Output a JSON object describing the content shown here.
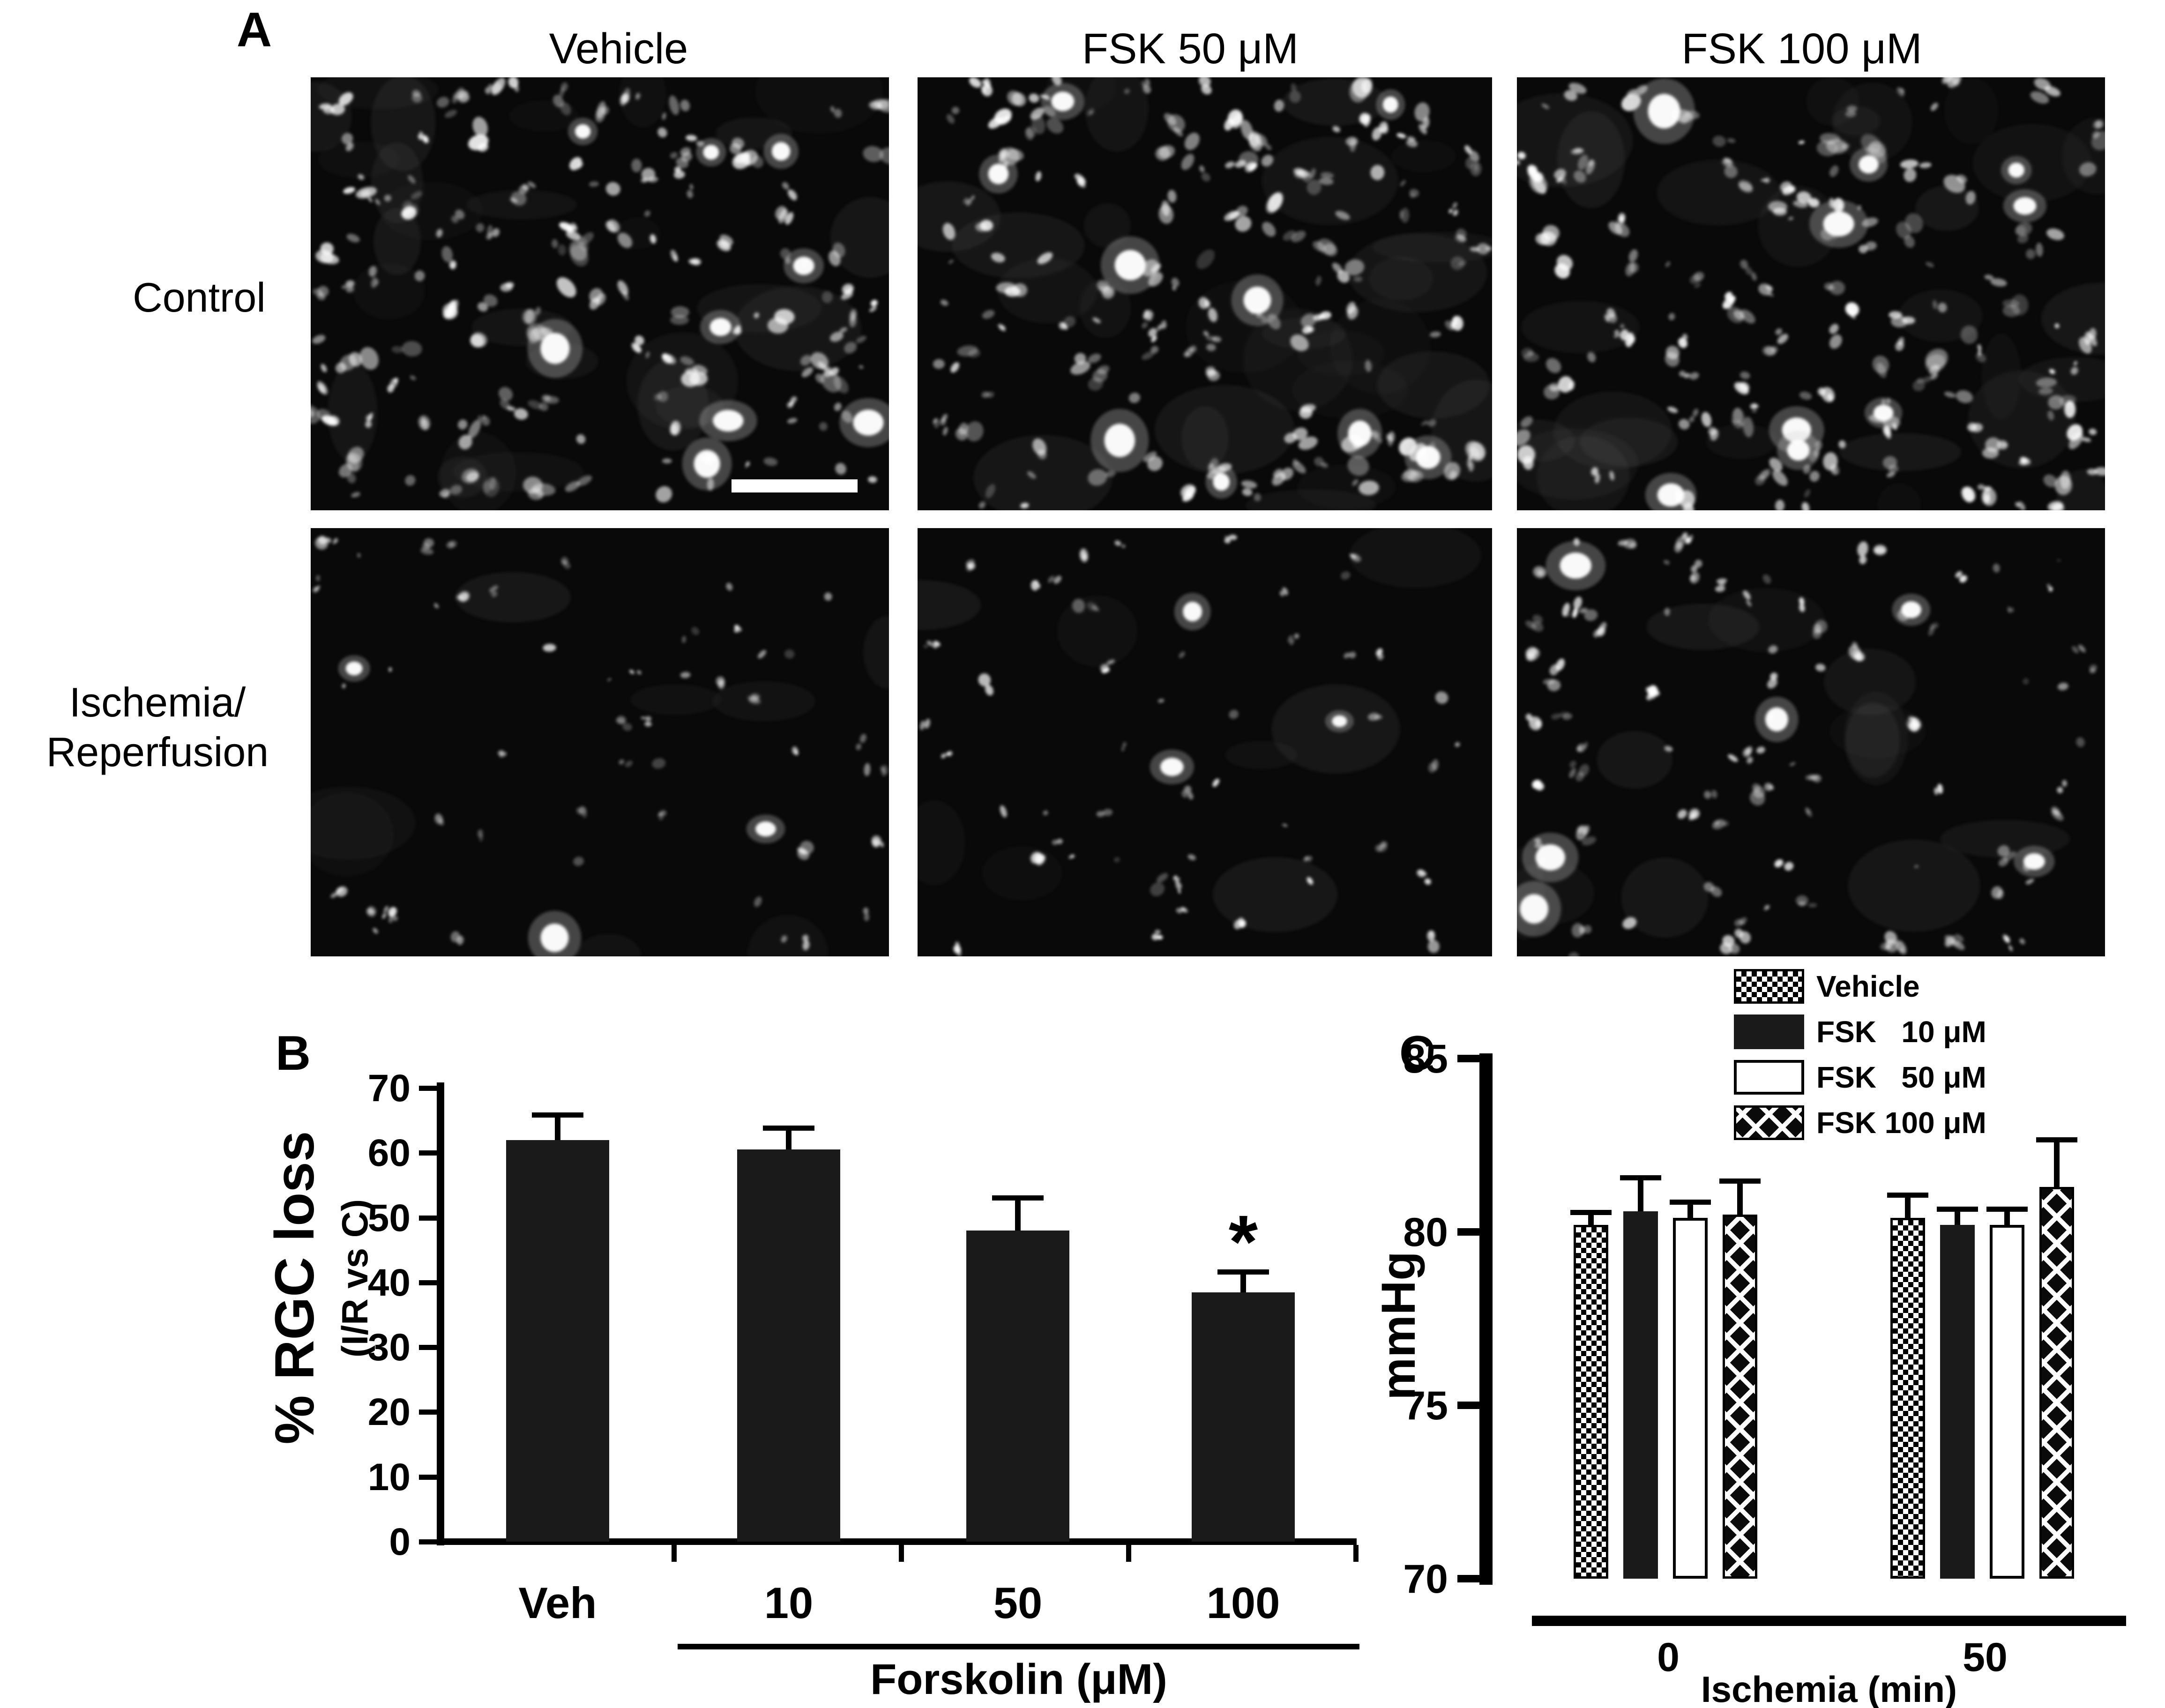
{
  "panel_a": {
    "label": "A",
    "columns": [
      "Vehicle",
      "FSK 50 μM",
      "FSK 100 μM"
    ],
    "row_control": "Control",
    "row_ir_line1": "Ischemia/",
    "row_ir_line2": "Reperfusion",
    "tiles": [
      {
        "name": "control-vehicle",
        "density": "dense",
        "has_scalebar": true
      },
      {
        "name": "control-fsk50",
        "density": "dense",
        "has_scalebar": false
      },
      {
        "name": "control-fsk100",
        "density": "dense",
        "has_scalebar": false
      },
      {
        "name": "ir-vehicle",
        "density": "sparse",
        "has_scalebar": false
      },
      {
        "name": "ir-fsk50",
        "density": "sparse",
        "has_scalebar": false
      },
      {
        "name": "ir-fsk100",
        "density": "medium",
        "has_scalebar": false
      }
    ]
  },
  "chart_data": [
    {
      "id": "B",
      "panel_label": "B",
      "type": "bar",
      "categories": [
        "Veh",
        "10",
        "50",
        "100"
      ],
      "values": [
        62,
        60.5,
        48,
        38.5
      ],
      "errors": [
        3.5,
        3.0,
        4.7,
        2.8
      ],
      "sig": [
        "",
        "",
        "",
        "*"
      ],
      "title": "",
      "ylabel": "% RGC loss",
      "ylabel_sub": "(I/R vs C)",
      "xlabel": "Forskolin (μM)",
      "yticks": [
        0,
        10,
        20,
        30,
        40,
        50,
        60,
        70
      ],
      "ylim": [
        0,
        70
      ],
      "bar_color": "#1a1a1a",
      "x_rule_categories": [
        "10",
        "50",
        "100"
      ],
      "grid": false,
      "legend_position": "none"
    },
    {
      "id": "C",
      "panel_label": "C",
      "type": "grouped-bar",
      "groups": [
        "0",
        "50"
      ],
      "series": [
        {
          "name": "Vehicle",
          "pattern": "checker",
          "values": [
            80.2,
            80.4
          ],
          "errors": [
            0.3,
            0.6
          ]
        },
        {
          "name": "FSK   10 μM",
          "pattern": "solid",
          "values": [
            80.6,
            80.2
          ],
          "errors": [
            0.9,
            0.4
          ]
        },
        {
          "name": "FSK   50 μM",
          "pattern": "open",
          "values": [
            80.4,
            80.2
          ],
          "errors": [
            0.4,
            0.4
          ]
        },
        {
          "name": "FSK 100 μM",
          "pattern": "diamond",
          "values": [
            80.5,
            81.3
          ],
          "errors": [
            0.9,
            1.3
          ]
        }
      ],
      "title": "",
      "ylabel": "mmHg",
      "xlabel": "Ischemia (min)",
      "yticks": [
        70,
        75,
        80,
        85
      ],
      "ylim": [
        70,
        85
      ],
      "grid": false,
      "legend_position": "top-right"
    }
  ]
}
